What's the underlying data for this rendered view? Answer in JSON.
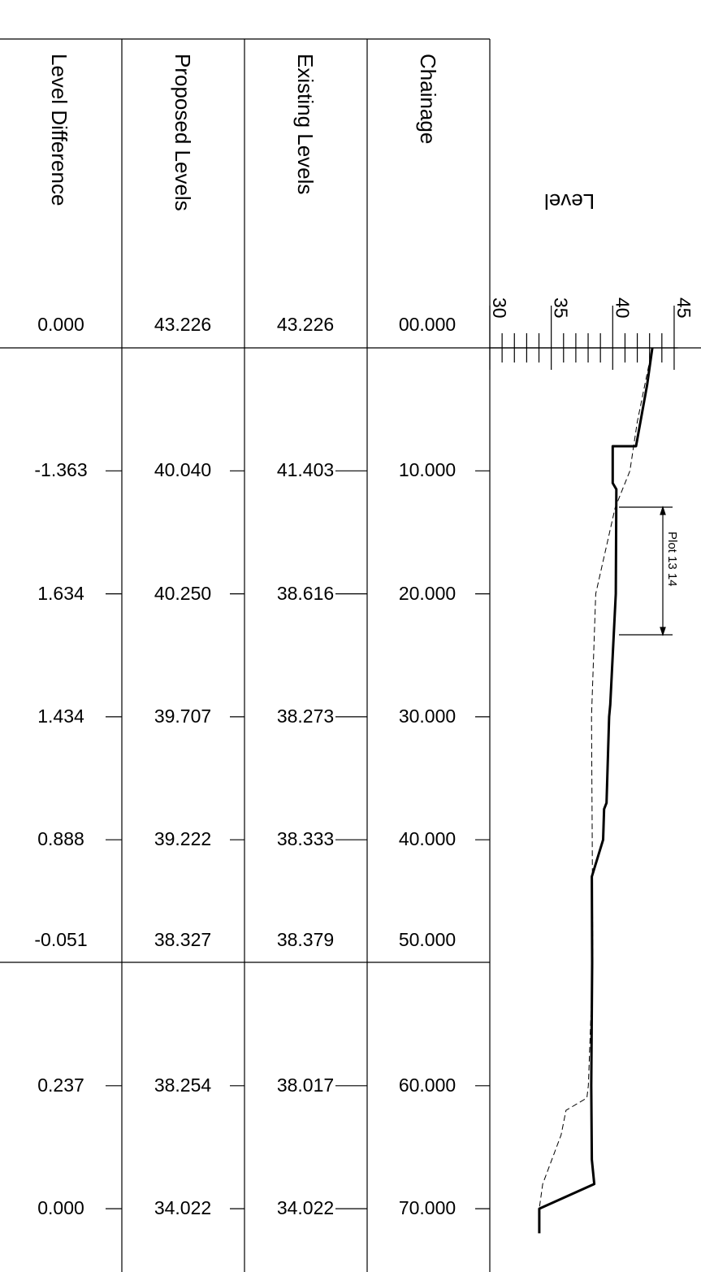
{
  "headers": {
    "level_difference": "Level Difference",
    "proposed_levels": "Proposed Levels",
    "existing_levels": "Existing Levels",
    "chainage": "Chainage"
  },
  "axis": {
    "title": "Level",
    "ticks": [
      "30",
      "35",
      "40",
      "45"
    ]
  },
  "annotation": {
    "label": "Plot 13 14"
  },
  "rows": [
    {
      "chainage": "00.000",
      "existing": "43.226",
      "proposed": "43.226",
      "difference": "0.000"
    },
    {
      "chainage": "10.000",
      "existing": "41.403",
      "proposed": "40.040",
      "difference": "-1.363"
    },
    {
      "chainage": "20.000",
      "existing": "38.616",
      "proposed": "40.250",
      "difference": "1.634"
    },
    {
      "chainage": "30.000",
      "existing": "38.273",
      "proposed": "39.707",
      "difference": "1.434"
    },
    {
      "chainage": "40.000",
      "existing": "38.333",
      "proposed": "39.222",
      "difference": "0.888"
    },
    {
      "chainage": "50.000",
      "existing": "38.379",
      "proposed": "38.327",
      "difference": "-0.051"
    },
    {
      "chainage": "60.000",
      "existing": "38.017",
      "proposed": "38.254",
      "difference": "0.237"
    },
    {
      "chainage": "70.000",
      "existing": "34.022",
      "proposed": "34.022",
      "difference": "0.000"
    }
  ],
  "chart_data": {
    "type": "line",
    "title": "",
    "xlabel": "Level",
    "ylabel": "Chainage",
    "xlim": [
      30,
      45
    ],
    "series": [
      {
        "name": "Proposed Levels",
        "style": "solid",
        "points": [
          [
            43.226,
            0
          ],
          [
            42.8,
            3
          ],
          [
            41.9,
            8
          ],
          [
            40.0,
            8
          ],
          [
            40.0,
            11
          ],
          [
            40.3,
            11.5
          ],
          [
            40.25,
            20
          ],
          [
            39.8,
            29
          ],
          [
            39.707,
            30
          ],
          [
            39.5,
            37
          ],
          [
            39.3,
            37.5
          ],
          [
            39.222,
            40
          ],
          [
            38.3,
            43
          ],
          [
            38.327,
            50
          ],
          [
            38.254,
            60
          ],
          [
            38.3,
            66
          ],
          [
            38.5,
            68
          ],
          [
            34.022,
            70
          ],
          [
            34.022,
            72
          ]
        ]
      },
      {
        "name": "Existing Levels",
        "style": "dashed",
        "points": [
          [
            43.226,
            0
          ],
          [
            42.0,
            6
          ],
          [
            41.403,
            10
          ],
          [
            40.2,
            13
          ],
          [
            38.616,
            20
          ],
          [
            38.273,
            30
          ],
          [
            38.333,
            40
          ],
          [
            38.379,
            50
          ],
          [
            38.017,
            60
          ],
          [
            37.9,
            61
          ],
          [
            36.2,
            62
          ],
          [
            35.8,
            64
          ],
          [
            34.3,
            68
          ],
          [
            34.022,
            70
          ]
        ]
      }
    ]
  }
}
